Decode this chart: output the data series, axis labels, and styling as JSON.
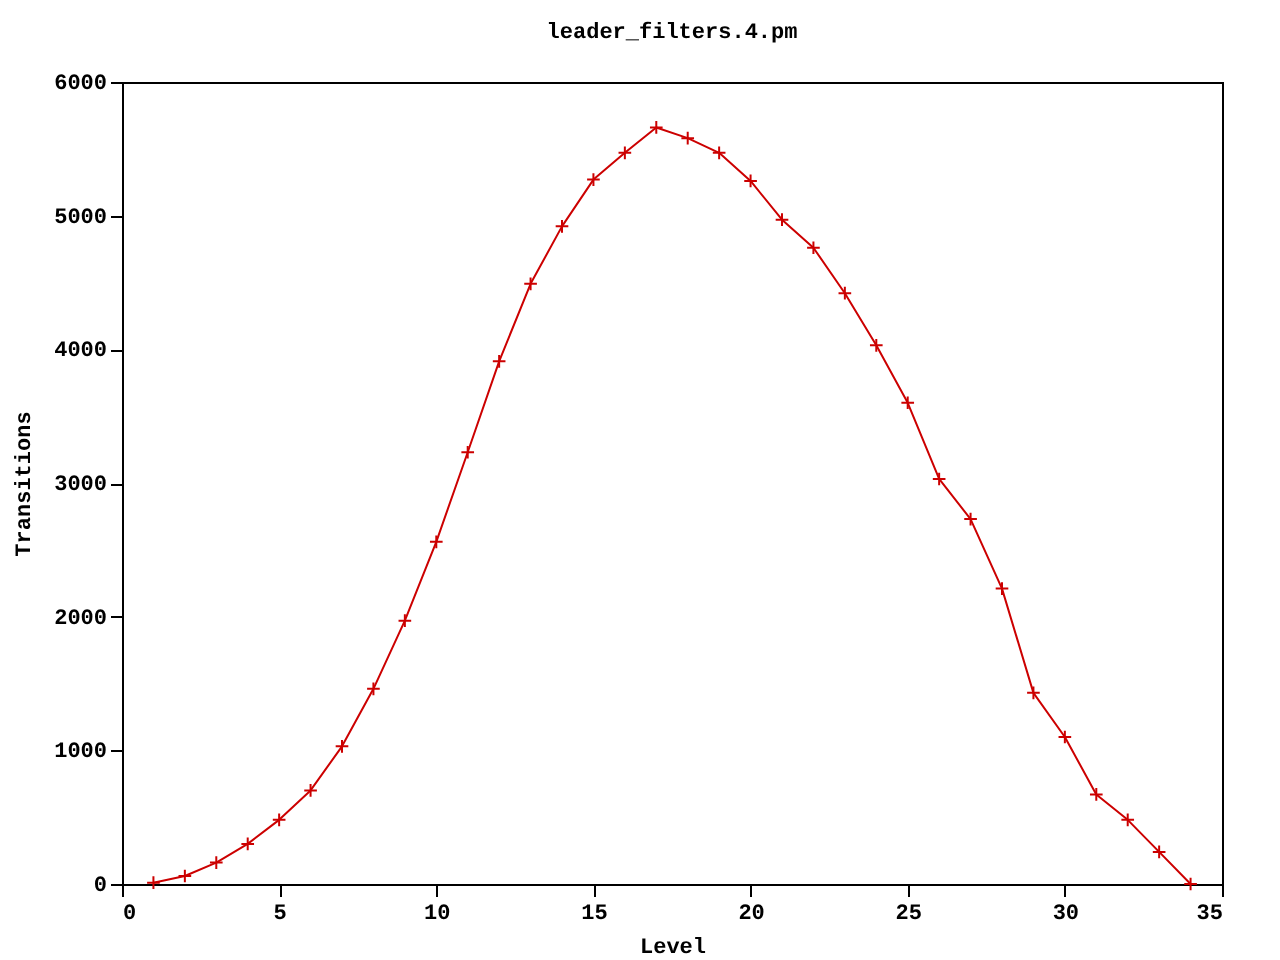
{
  "chart_data": {
    "type": "line",
    "title": "leader_filters.4.pm",
    "xlabel": "Level",
    "ylabel": "Transitions",
    "x": [
      1,
      2,
      3,
      4,
      5,
      6,
      7,
      8,
      9,
      10,
      11,
      12,
      13,
      14,
      15,
      16,
      17,
      18,
      19,
      20,
      21,
      22,
      23,
      24,
      25,
      26,
      27,
      28,
      29,
      30,
      31,
      32,
      33,
      34
    ],
    "series": [
      {
        "color": "#cc0000",
        "values": [
          10,
          60,
          160,
          300,
          480,
          700,
          1030,
          1460,
          1970,
          2560,
          3230,
          3910,
          4490,
          4920,
          5270,
          5470,
          5660,
          5580,
          5470,
          5260,
          4970,
          4760,
          4420,
          4030,
          3600,
          3030,
          2730,
          2210,
          1430,
          1100,
          670,
          480,
          240,
          0
        ]
      }
    ],
    "xlim": [
      0,
      35
    ],
    "xticks": [
      0,
      5,
      10,
      15,
      20,
      25,
      30,
      35
    ],
    "ylim": [
      0,
      6000
    ],
    "yticks": [
      0,
      1000,
      2000,
      3000,
      4000,
      5000,
      6000
    ],
    "marker": "cross",
    "line_style": "solid",
    "grid": false
  }
}
